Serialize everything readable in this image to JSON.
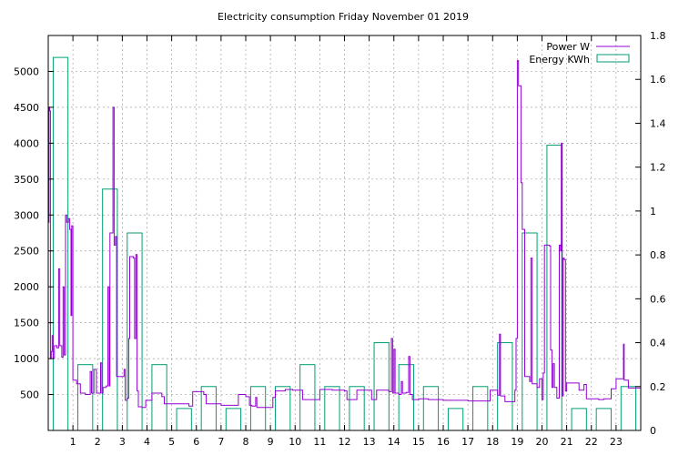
{
  "chart_data": {
    "type": "bar+line",
    "title": "Electricity consumption Friday November 01 2019",
    "grid": true,
    "legend_position": "top-right",
    "x_axis": {
      "range": [
        0,
        24
      ],
      "ticks": [
        1,
        2,
        3,
        4,
        5,
        6,
        7,
        8,
        9,
        10,
        11,
        12,
        13,
        14,
        15,
        16,
        17,
        18,
        19,
        20,
        21,
        22,
        23
      ],
      "tick_labels": [
        "1",
        "2",
        "3",
        "4",
        "5",
        "6",
        "7",
        "8",
        "9",
        "10",
        "11",
        "12",
        "13",
        "14",
        "15",
        "16",
        "17",
        "18",
        "19",
        "20",
        "21",
        "22",
        "23"
      ]
    },
    "y_axis_left": {
      "range": [
        0,
        5500
      ],
      "ticks": [
        500,
        1000,
        1500,
        2000,
        2500,
        3000,
        3500,
        4000,
        4500,
        5000
      ],
      "tick_labels": [
        "500",
        "1000",
        "1500",
        "2000",
        "2500",
        "3000",
        "3500",
        "4000",
        "4500",
        "5000"
      ]
    },
    "y_axis_right": {
      "range": [
        0,
        1.8
      ],
      "ticks": [
        0,
        0.2,
        0.4,
        0.6,
        0.8,
        1,
        1.2,
        1.4,
        1.6,
        1.8
      ],
      "tick_labels": [
        "0",
        "0.2",
        "0.4",
        "0.6",
        "0.8",
        "1",
        "1.2",
        "1.4",
        "1.6",
        "1.8"
      ]
    },
    "series": [
      {
        "name": "Power W",
        "axis": "left",
        "color": "#9400d3",
        "style": "steps",
        "points": [
          [
            0.0,
            2900
          ],
          [
            0.03,
            4500
          ],
          [
            0.06,
            4450
          ],
          [
            0.09,
            1000
          ],
          [
            0.12,
            1100
          ],
          [
            0.16,
            1320
          ],
          [
            0.2,
            1000
          ],
          [
            0.25,
            1180
          ],
          [
            0.35,
            1150
          ],
          [
            0.42,
            2250
          ],
          [
            0.47,
            1180
          ],
          [
            0.55,
            1020
          ],
          [
            0.6,
            2000
          ],
          [
            0.65,
            1050
          ],
          [
            0.7,
            3000
          ],
          [
            0.75,
            2900
          ],
          [
            0.82,
            2950
          ],
          [
            0.87,
            2800
          ],
          [
            0.92,
            1600
          ],
          [
            0.95,
            2850
          ],
          [
            1.0,
            700
          ],
          [
            1.15,
            650
          ],
          [
            1.3,
            520
          ],
          [
            1.5,
            500
          ],
          [
            1.7,
            820
          ],
          [
            1.75,
            520
          ],
          [
            1.85,
            850
          ],
          [
            1.95,
            520
          ],
          [
            2.05,
            520
          ],
          [
            2.12,
            940
          ],
          [
            2.17,
            520
          ],
          [
            2.22,
            600
          ],
          [
            2.35,
            620
          ],
          [
            2.42,
            2000
          ],
          [
            2.47,
            620
          ],
          [
            2.5,
            2750
          ],
          [
            2.62,
            4500
          ],
          [
            2.67,
            2580
          ],
          [
            2.72,
            2700
          ],
          [
            2.77,
            750
          ],
          [
            3.0,
            750
          ],
          [
            3.07,
            850
          ],
          [
            3.12,
            420
          ],
          [
            3.2,
            450
          ],
          [
            3.26,
            1280
          ],
          [
            3.3,
            2420
          ],
          [
            3.45,
            2400
          ],
          [
            3.5,
            1280
          ],
          [
            3.55,
            2450
          ],
          [
            3.6,
            550
          ],
          [
            3.65,
            330
          ],
          [
            3.8,
            320
          ],
          [
            3.95,
            420
          ],
          [
            4.1,
            420
          ],
          [
            4.2,
            520
          ],
          [
            4.6,
            470
          ],
          [
            4.7,
            370
          ],
          [
            5.0,
            370
          ],
          [
            5.5,
            370
          ],
          [
            5.7,
            340
          ],
          [
            5.85,
            540
          ],
          [
            6.0,
            540
          ],
          [
            6.3,
            500
          ],
          [
            6.4,
            370
          ],
          [
            6.6,
            370
          ],
          [
            7.0,
            350
          ],
          [
            7.3,
            350
          ],
          [
            7.6,
            350
          ],
          [
            7.7,
            500
          ],
          [
            7.8,
            500
          ],
          [
            8.0,
            470
          ],
          [
            8.15,
            350
          ],
          [
            8.25,
            340
          ],
          [
            8.4,
            460
          ],
          [
            8.45,
            320
          ],
          [
            9.0,
            320
          ],
          [
            9.1,
            460
          ],
          [
            9.2,
            550
          ],
          [
            9.5,
            550
          ],
          [
            9.6,
            570
          ],
          [
            9.9,
            560
          ],
          [
            10.2,
            560
          ],
          [
            10.3,
            430
          ],
          [
            10.5,
            430
          ],
          [
            10.6,
            430
          ],
          [
            11.0,
            570
          ],
          [
            11.5,
            560
          ],
          [
            11.85,
            560
          ],
          [
            12.0,
            550
          ],
          [
            12.1,
            430
          ],
          [
            12.3,
            430
          ],
          [
            12.4,
            430
          ],
          [
            12.5,
            560
          ],
          [
            13.0,
            560
          ],
          [
            13.1,
            430
          ],
          [
            13.2,
            430
          ],
          [
            13.3,
            560
          ],
          [
            13.5,
            560
          ],
          [
            13.8,
            540
          ],
          [
            13.9,
            1280
          ],
          [
            13.95,
            520
          ],
          [
            14.0,
            1130
          ],
          [
            14.05,
            520
          ],
          [
            14.2,
            500
          ],
          [
            14.3,
            680
          ],
          [
            14.35,
            520
          ],
          [
            14.5,
            530
          ],
          [
            14.6,
            1030
          ],
          [
            14.65,
            500
          ],
          [
            14.75,
            430
          ],
          [
            15.0,
            440
          ],
          [
            15.2,
            440
          ],
          [
            15.4,
            430
          ],
          [
            15.8,
            430
          ],
          [
            16.0,
            420
          ],
          [
            16.5,
            420
          ],
          [
            17.0,
            410
          ],
          [
            17.8,
            410
          ],
          [
            17.9,
            560
          ],
          [
            18.1,
            560
          ],
          [
            18.2,
            490
          ],
          [
            18.28,
            1340
          ],
          [
            18.32,
            480
          ],
          [
            18.5,
            400
          ],
          [
            18.8,
            400
          ],
          [
            18.9,
            560
          ],
          [
            18.95,
            1280
          ],
          [
            19.0,
            5150
          ],
          [
            19.05,
            4800
          ],
          [
            19.15,
            3450
          ],
          [
            19.2,
            2800
          ],
          [
            19.3,
            750
          ],
          [
            19.4,
            750
          ],
          [
            19.5,
            680
          ],
          [
            19.55,
            2400
          ],
          [
            19.6,
            650
          ],
          [
            19.8,
            600
          ],
          [
            19.9,
            720
          ],
          [
            20.0,
            430
          ],
          [
            20.05,
            800
          ],
          [
            20.1,
            2580
          ],
          [
            20.3,
            2570
          ],
          [
            20.35,
            1120
          ],
          [
            20.4,
            600
          ],
          [
            20.45,
            930
          ],
          [
            20.5,
            600
          ],
          [
            20.6,
            450
          ],
          [
            20.7,
            2580
          ],
          [
            20.75,
            2500
          ],
          [
            20.78,
            4000
          ],
          [
            20.82,
            480
          ],
          [
            20.86,
            2400
          ],
          [
            20.9,
            2380
          ],
          [
            20.95,
            550
          ],
          [
            21.0,
            660
          ],
          [
            21.2,
            660
          ],
          [
            21.5,
            560
          ],
          [
            21.7,
            640
          ],
          [
            21.8,
            440
          ],
          [
            22.0,
            440
          ],
          [
            22.3,
            430
          ],
          [
            22.5,
            440
          ],
          [
            22.7,
            440
          ],
          [
            22.8,
            580
          ],
          [
            22.9,
            580
          ],
          [
            23.0,
            720
          ],
          [
            23.1,
            720
          ],
          [
            23.2,
            720
          ],
          [
            23.3,
            1200
          ],
          [
            23.33,
            700
          ],
          [
            23.5,
            590
          ],
          [
            23.8,
            590
          ],
          [
            24.0,
            580
          ]
        ]
      },
      {
        "name": "Energy KWh",
        "axis": "right",
        "color": "#009e73",
        "style": "boxes",
        "bars": [
          [
            0,
            1.7
          ],
          [
            1,
            0.3
          ],
          [
            2,
            1.1
          ],
          [
            3,
            0.9
          ],
          [
            4,
            0.3
          ],
          [
            5,
            0.1
          ],
          [
            6,
            0.2
          ],
          [
            7,
            0.1
          ],
          [
            8,
            0.2
          ],
          [
            9,
            0.2
          ],
          [
            10,
            0.3
          ],
          [
            11,
            0.2
          ],
          [
            12,
            0.2
          ],
          [
            13,
            0.4
          ],
          [
            14,
            0.3
          ],
          [
            15,
            0.2
          ],
          [
            16,
            0.1
          ],
          [
            17,
            0.2
          ],
          [
            18,
            0.4
          ],
          [
            19,
            0.9
          ],
          [
            20,
            1.3
          ],
          [
            21,
            0.1
          ],
          [
            22,
            0.1
          ],
          [
            23,
            0.2
          ]
        ]
      }
    ]
  }
}
